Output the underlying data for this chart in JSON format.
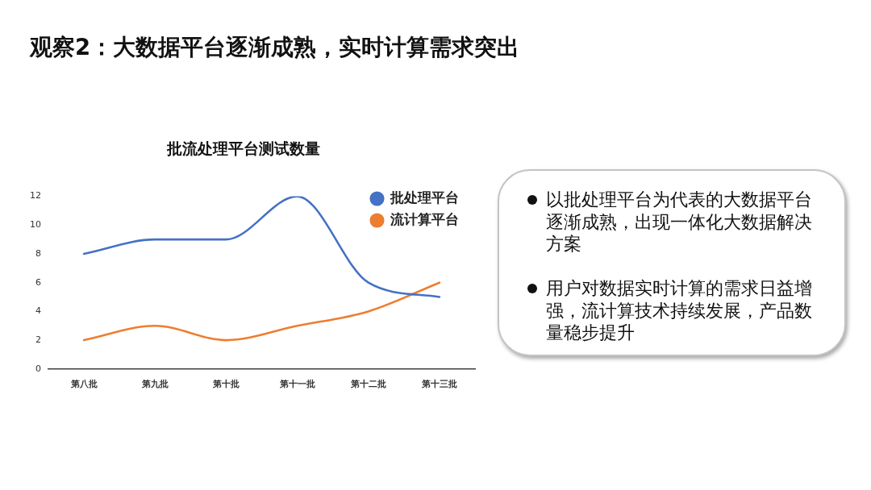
{
  "chart_data": {
    "type": "line",
    "title": "观察2：大数据平台逐渐成熟，实时计算需求突出",
    "subtitle": "批流处理平台测试数量",
    "categories": [
      "第八批",
      "第九批",
      "第十批",
      "第十一批",
      "第十二批",
      "第十三批"
    ],
    "series": [
      {
        "name": "批处理平台",
        "color": "#4472c4",
        "values": [
          8,
          9,
          9,
          12,
          6,
          5
        ]
      },
      {
        "name": "流计算平台",
        "color": "#ed7d31",
        "values": [
          2,
          3,
          2,
          3,
          4,
          6
        ]
      }
    ],
    "ylim": [
      0,
      12
    ],
    "yticks": [
      0,
      2,
      4,
      6,
      8,
      10,
      12
    ],
    "legend": "top right",
    "marker": "none",
    "annotations": [
      "以批处理平台为代表的大数据平台逐渐成熟，出现一体化大数据解决方案",
      "用户对数据实时计算的需求日益增强，流计算技术持续发展，产品数量稳步提升"
    ]
  }
}
